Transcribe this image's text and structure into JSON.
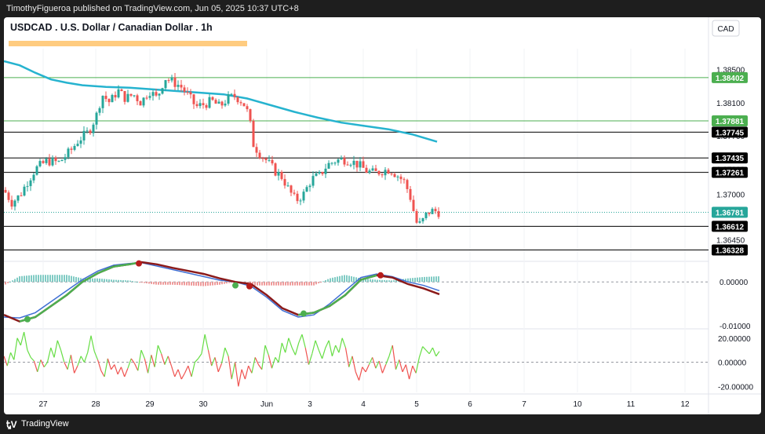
{
  "header": {
    "publisher_line": "TimothyFigueroa published on TradingView.com, Jun 05, 2025 10:37 UTC+8"
  },
  "chart": {
    "title": "USDCAD . U.S. Dollar / Canadian Dollar . 1h",
    "currency_button": "CAD"
  },
  "footer": {
    "brand": "TradingView"
  },
  "chart_data": {
    "type": "candlestick",
    "title": "USDCAD . U.S. Dollar / Canadian Dollar . 1h",
    "symbol": "USDCAD",
    "timeframe": "1h",
    "currency": "CAD",
    "x_axis": {
      "tick_labels": [
        "27",
        "28",
        "29",
        "30",
        "Jun",
        "3",
        "4",
        "5",
        "6",
        "7",
        "10",
        "11",
        "12"
      ]
    },
    "price_axis": {
      "range": [
        1.362,
        1.3875
      ],
      "tick_labels": [
        "1.38500",
        "1.38100",
        "1.37700",
        "1.37300",
        "1.37000",
        "1.36450"
      ]
    },
    "horizontal_levels": [
      {
        "price": "1.38402",
        "color": "#4caf50"
      },
      {
        "price": "1.37881",
        "color": "#4caf50"
      },
      {
        "price": "1.37745",
        "color": "#000000"
      },
      {
        "price": "1.37435",
        "color": "#000000"
      },
      {
        "price": "1.37261",
        "color": "#000000"
      },
      {
        "price": "1.36612",
        "color": "#000000"
      },
      {
        "price": "1.36328",
        "color": "#000000"
      }
    ],
    "last_price": {
      "price": "1.36781",
      "color": "#26a69a"
    },
    "moving_average": {
      "color": "#26b3cf",
      "points": [
        [
          0,
          1.386
        ],
        [
          20,
          1.3855
        ],
        [
          40,
          1.3846
        ],
        [
          60,
          1.3838
        ],
        [
          80,
          1.3834
        ],
        [
          100,
          1.3831
        ],
        [
          130,
          1.3829
        ],
        [
          160,
          1.3828
        ],
        [
          190,
          1.3826
        ],
        [
          220,
          1.3824
        ],
        [
          250,
          1.3822
        ],
        [
          280,
          1.382
        ],
        [
          310,
          1.3815
        ],
        [
          340,
          1.3807
        ],
        [
          370,
          1.3799
        ],
        [
          400,
          1.3792
        ],
        [
          430,
          1.3786
        ],
        [
          460,
          1.3782
        ],
        [
          490,
          1.3778
        ],
        [
          520,
          1.3772
        ],
        [
          552,
          1.3763
        ]
      ]
    },
    "price_path": [
      [
        0,
        1.3705
      ],
      [
        10,
        1.369
      ],
      [
        20,
        1.3698
      ],
      [
        30,
        1.3715
      ],
      [
        40,
        1.373
      ],
      [
        55,
        1.374
      ],
      [
        70,
        1.3738
      ],
      [
        85,
        1.3752
      ],
      [
        95,
        1.3765
      ],
      [
        108,
        1.3775
      ],
      [
        118,
        1.3795
      ],
      [
        125,
        1.382
      ],
      [
        135,
        1.381
      ],
      [
        145,
        1.3825
      ],
      [
        155,
        1.3815
      ],
      [
        165,
        1.382
      ],
      [
        175,
        1.381
      ],
      [
        185,
        1.3825
      ],
      [
        195,
        1.3815
      ],
      [
        205,
        1.384
      ],
      [
        215,
        1.3835
      ],
      [
        225,
        1.383
      ],
      [
        235,
        1.3818
      ],
      [
        245,
        1.3805
      ],
      [
        255,
        1.3808
      ],
      [
        265,
        1.3812
      ],
      [
        275,
        1.3805
      ],
      [
        285,
        1.3815
      ],
      [
        295,
        1.3818
      ],
      [
        305,
        1.381
      ],
      [
        312,
        1.3795
      ],
      [
        318,
        1.376
      ],
      [
        325,
        1.375
      ],
      [
        335,
        1.374
      ],
      [
        345,
        1.3728
      ],
      [
        355,
        1.372
      ],
      [
        363,
        1.3705
      ],
      [
        372,
        1.3692
      ],
      [
        382,
        1.37
      ],
      [
        392,
        1.3718
      ],
      [
        402,
        1.3722
      ],
      [
        412,
        1.3735
      ],
      [
        422,
        1.374
      ],
      [
        432,
        1.3742
      ],
      [
        442,
        1.374
      ],
      [
        452,
        1.3735
      ],
      [
        462,
        1.3728
      ],
      [
        472,
        1.3725
      ],
      [
        482,
        1.3728
      ],
      [
        492,
        1.373
      ],
      [
        502,
        1.3722
      ],
      [
        510,
        1.3715
      ],
      [
        517,
        1.37
      ],
      [
        522,
        1.368
      ],
      [
        527,
        1.3662
      ],
      [
        532,
        1.3665
      ],
      [
        540,
        1.3678
      ],
      [
        548,
        1.368
      ],
      [
        555,
        1.3678
      ]
    ],
    "macd_panel": {
      "range": [
        -0.0105,
        0.0045
      ],
      "tick_labels": [
        "0.00000",
        "-0.01000"
      ],
      "macd_line": {
        "color": "#3f6fd4",
        "points": [
          [
            0,
            -0.008
          ],
          [
            20,
            -0.0082
          ],
          [
            40,
            -0.007
          ],
          [
            60,
            -0.0045
          ],
          [
            80,
            -0.002
          ],
          [
            100,
            0.0005
          ],
          [
            120,
            0.0025
          ],
          [
            140,
            0.0038
          ],
          [
            160,
            0.0042
          ],
          [
            175,
            0.0044
          ],
          [
            195,
            0.0036
          ],
          [
            215,
            0.0028
          ],
          [
            235,
            0.002
          ],
          [
            255,
            0.0012
          ],
          [
            275,
            0.0004
          ],
          [
            295,
            0.0
          ],
          [
            315,
            -0.001
          ],
          [
            335,
            -0.0035
          ],
          [
            355,
            -0.0065
          ],
          [
            375,
            -0.008
          ],
          [
            395,
            -0.0075
          ],
          [
            415,
            -0.005
          ],
          [
            435,
            -0.002
          ],
          [
            455,
            0.001
          ],
          [
            475,
            0.0018
          ],
          [
            495,
            0.0012
          ],
          [
            515,
            0.0
          ],
          [
            535,
            -0.0008
          ],
          [
            555,
            -0.002
          ]
        ]
      },
      "signal_line": {
        "color": "#8b1a1a",
        "points": [
          [
            0,
            -0.0075
          ],
          [
            20,
            -0.009
          ],
          [
            40,
            -0.008
          ],
          [
            60,
            -0.0055
          ],
          [
            80,
            -0.003
          ],
          [
            100,
            0.0
          ],
          [
            120,
            0.002
          ],
          [
            140,
            0.0035
          ],
          [
            160,
            0.004
          ],
          [
            175,
            0.0045
          ],
          [
            195,
            0.004
          ],
          [
            215,
            0.0032
          ],
          [
            235,
            0.0025
          ],
          [
            255,
            0.0018
          ],
          [
            275,
            0.0008
          ],
          [
            295,
            0.0
          ],
          [
            315,
            -0.0005
          ],
          [
            335,
            -0.003
          ],
          [
            355,
            -0.006
          ],
          [
            375,
            -0.0075
          ],
          [
            395,
            -0.007
          ],
          [
            415,
            -0.0055
          ],
          [
            435,
            -0.003
          ],
          [
            455,
            0.0005
          ],
          [
            475,
            0.0015
          ],
          [
            495,
            0.001
          ],
          [
            515,
            -0.0005
          ],
          [
            535,
            -0.0015
          ],
          [
            555,
            -0.0028
          ]
        ]
      },
      "crosses": [
        {
          "x": 30,
          "value": -0.0085,
          "color": "#4caf50"
        },
        {
          "x": 172,
          "value": 0.0042,
          "color": "#b71c1c"
        },
        {
          "x": 295,
          "value": -0.0008,
          "color": "#4caf50"
        },
        {
          "x": 313,
          "value": -0.001,
          "color": "#b71c1c"
        },
        {
          "x": 382,
          "value": -0.0072,
          "color": "#4caf50"
        },
        {
          "x": 480,
          "value": 0.0015,
          "color": "#b71c1c"
        }
      ]
    },
    "oscillator_panel": {
      "range": [
        -25,
        27
      ],
      "tick_labels": [
        "20.00000",
        "0.00000",
        "-20.00000"
      ],
      "values": [
        5,
        -3,
        8,
        2,
        20,
        14,
        25,
        10,
        4,
        1,
        -8,
        2,
        -4,
        0,
        12,
        4,
        18,
        10,
        0,
        -6,
        6,
        -9,
        -3,
        5,
        0,
        8,
        22,
        9,
        2,
        -7,
        -12,
        3,
        -6,
        -2,
        -10,
        -4,
        -12,
        -5,
        3,
        -1,
        -7,
        10,
        3,
        -9,
        6,
        -4,
        14,
        7,
        -2,
        5,
        -3,
        -12,
        -6,
        -14,
        -9,
        -3,
        -12,
        0,
        3,
        7,
        23,
        10,
        -3,
        4,
        -8,
        -1,
        12,
        5,
        -14,
        0,
        -20,
        -6,
        -14,
        -3,
        -9,
        4,
        -2,
        -6,
        14,
        6,
        -5,
        4,
        0,
        16,
        8,
        20,
        12,
        6,
        16,
        23,
        12,
        -2,
        7,
        18,
        10,
        3,
        12,
        18,
        5,
        14,
        8,
        20,
        12,
        -4,
        5,
        -8,
        -15,
        -4,
        -8,
        -2,
        4,
        -5,
        1,
        -9,
        -2,
        5,
        14,
        -6,
        2,
        -8,
        -2,
        -14,
        -3,
        -9,
        4,
        13,
        10,
        7,
        12,
        5,
        9
      ]
    }
  }
}
